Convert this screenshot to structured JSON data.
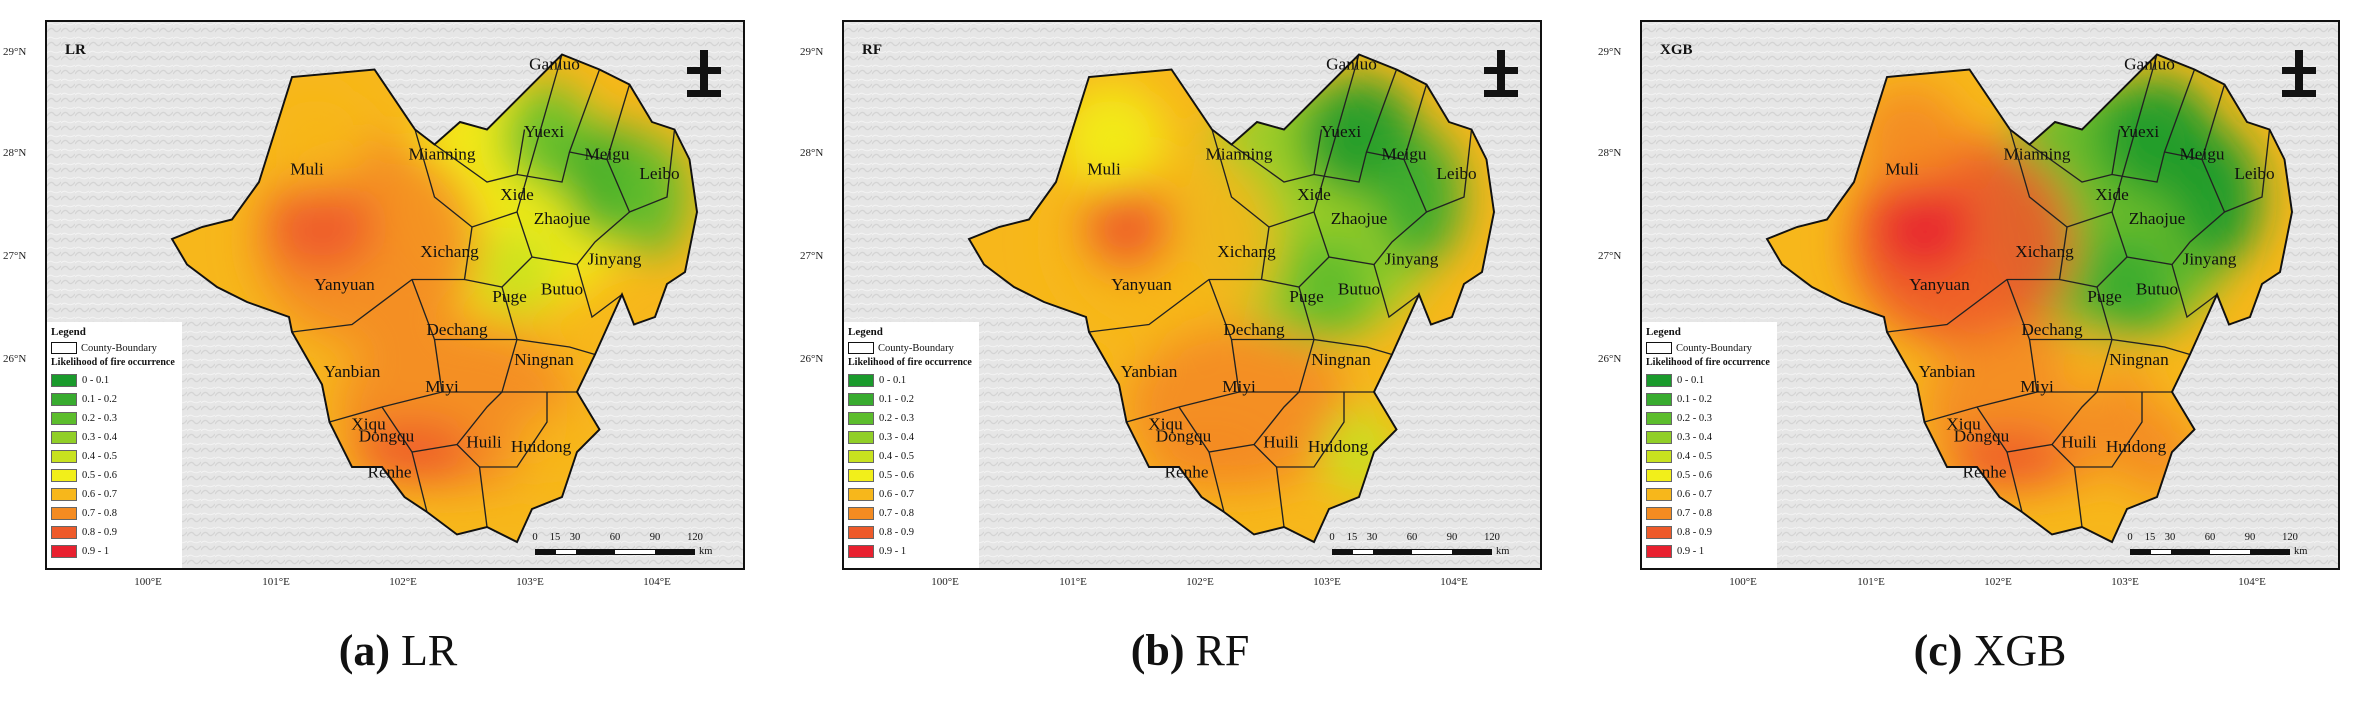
{
  "panels": [
    {
      "label": "LR",
      "caption_letter": "(a)",
      "caption_model": "LR",
      "scheme": "lr"
    },
    {
      "label": "RF",
      "caption_letter": "(b)",
      "caption_model": "RF",
      "scheme": "rf"
    },
    {
      "label": "XGB",
      "caption_letter": "(c)",
      "caption_model": "XGB",
      "scheme": "xgb"
    }
  ],
  "axes": {
    "latitudes": [
      "29°N",
      "28°N",
      "27°N",
      "26°N"
    ],
    "longitudes": [
      "100°E",
      "101°E",
      "102°E",
      "103°E",
      "104°E"
    ]
  },
  "legend": {
    "title": "Legend",
    "boundary_label": "County-Boundary",
    "subtitle": "Likelihood of fire occurrence",
    "classes": [
      {
        "label": "0 - 0.1",
        "color": "#1a9a2c"
      },
      {
        "label": "0.1 - 0.2",
        "color": "#38ab2f"
      },
      {
        "label": "0.2 - 0.3",
        "color": "#5cbd2c"
      },
      {
        "label": "0.3 - 0.4",
        "color": "#91cf27"
      },
      {
        "label": "0.4 - 0.5",
        "color": "#c8e21f"
      },
      {
        "label": "0.5 - 0.6",
        "color": "#f2ef1a"
      },
      {
        "label": "0.6 - 0.7",
        "color": "#f7b71b"
      },
      {
        "label": "0.7 - 0.8",
        "color": "#f48b21"
      },
      {
        "label": "0.8 - 0.9",
        "color": "#ee5a2a"
      },
      {
        "label": "0.9 - 1",
        "color": "#e8202f"
      }
    ]
  },
  "scale_bar": {
    "ticks": [
      "0",
      "15",
      "30",
      "60",
      "90",
      "120"
    ],
    "unit": "km"
  },
  "counties": [
    "Ganluo",
    "Mianning",
    "Yuexi",
    "Meigu",
    "Leibo",
    "Muli",
    "Xide",
    "Zhaojue",
    "Jinyang",
    "Xichang",
    "Yanyuan",
    "Butuo",
    "Puge",
    "Dechang",
    "Ningnan",
    "Yanbian",
    "Miyi",
    "Renhe",
    "Xiqu",
    "Dongqu",
    "Huili",
    "Huidong"
  ],
  "north_symbol": "north-arrow-icon"
}
